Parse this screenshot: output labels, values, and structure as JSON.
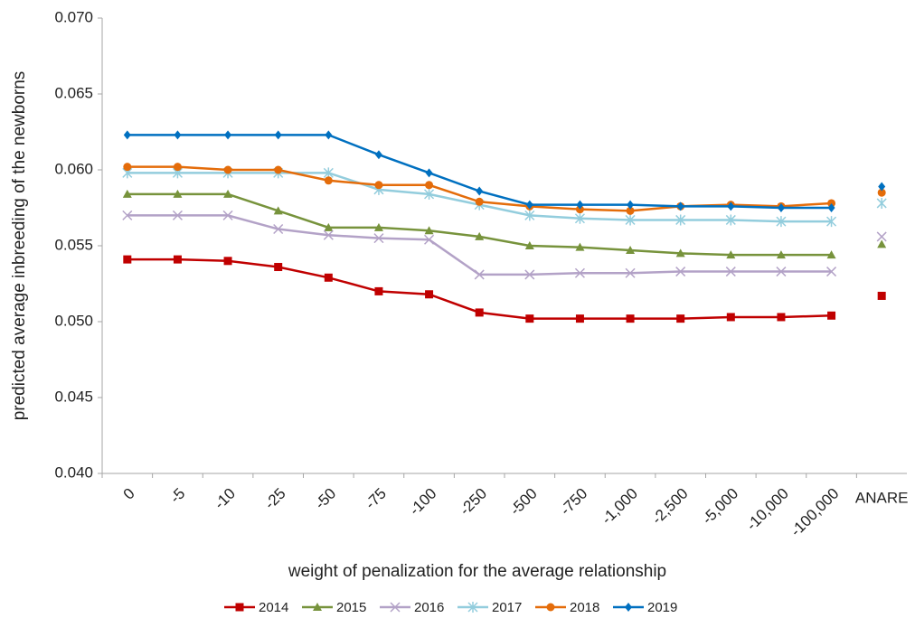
{
  "chart_data": {
    "type": "line",
    "x_label": "weight of penalization for the average relationship",
    "y_label": "predicted average inbreeding of the newborns",
    "categories": [
      "0",
      "-5",
      "-10",
      "-25",
      "-50",
      "-75",
      "-100",
      "-250",
      "-500",
      "-750",
      "-1,000",
      "-2,500",
      "-5,000",
      "-10,000",
      "-100,000",
      "ANARE"
    ],
    "ylim": [
      0.04,
      0.07
    ],
    "yticks": [
      {
        "value": 0.04,
        "label": "0.040"
      },
      0.045,
      {
        "value": 0.05,
        "label": "0.050"
      },
      0.055,
      {
        "value": 0.06,
        "label": "0.060"
      },
      0.065,
      {
        "value": 0.07,
        "label": "0.070"
      }
    ],
    "grid": false,
    "legend": "bottom",
    "series": [
      {
        "name": "2014",
        "color": "#c00000",
        "marker": "square",
        "values": [
          0.0541,
          0.0541,
          0.054,
          0.0536,
          0.0529,
          0.052,
          0.0518,
          0.0506,
          0.0502,
          0.0502,
          0.0502,
          0.0502,
          0.0503,
          0.0503,
          0.0504,
          0.0517
        ]
      },
      {
        "name": "2015",
        "color": "#77933c",
        "marker": "triangle",
        "values": [
          0.0584,
          0.0584,
          0.0584,
          0.0573,
          0.0562,
          0.0562,
          0.056,
          0.0556,
          0.055,
          0.0549,
          0.0547,
          0.0545,
          0.0544,
          0.0544,
          0.0544,
          0.0551
        ]
      },
      {
        "name": "2016",
        "color": "#b3a2c7",
        "marker": "x",
        "values": [
          0.057,
          0.057,
          0.057,
          0.0561,
          0.0557,
          0.0555,
          0.0554,
          0.0531,
          0.0531,
          0.0532,
          0.0532,
          0.0533,
          0.0533,
          0.0533,
          0.0533,
          0.0556
        ]
      },
      {
        "name": "2017",
        "color": "#93cddd",
        "marker": "star",
        "values": [
          0.0598,
          0.0598,
          0.0598,
          0.0598,
          0.0598,
          0.0587,
          0.0584,
          0.0577,
          0.057,
          0.0568,
          0.0567,
          0.0567,
          0.0567,
          0.0566,
          0.0566,
          0.0578
        ]
      },
      {
        "name": "2018",
        "color": "#e46c0a",
        "marker": "circle",
        "values": [
          0.0602,
          0.0602,
          0.06,
          0.06,
          0.0593,
          0.059,
          0.059,
          0.0579,
          0.0576,
          0.0574,
          0.0573,
          0.0576,
          0.0577,
          0.0576,
          0.0578,
          0.0585
        ]
      },
      {
        "name": "2019",
        "color": "#0070c0",
        "marker": "diamond",
        "values": [
          0.0623,
          0.0623,
          0.0623,
          0.0623,
          0.0623,
          0.061,
          0.0598,
          0.0586,
          0.0577,
          0.0577,
          0.0577,
          0.0576,
          0.0576,
          0.0575,
          0.0575,
          0.0589
        ]
      }
    ]
  }
}
